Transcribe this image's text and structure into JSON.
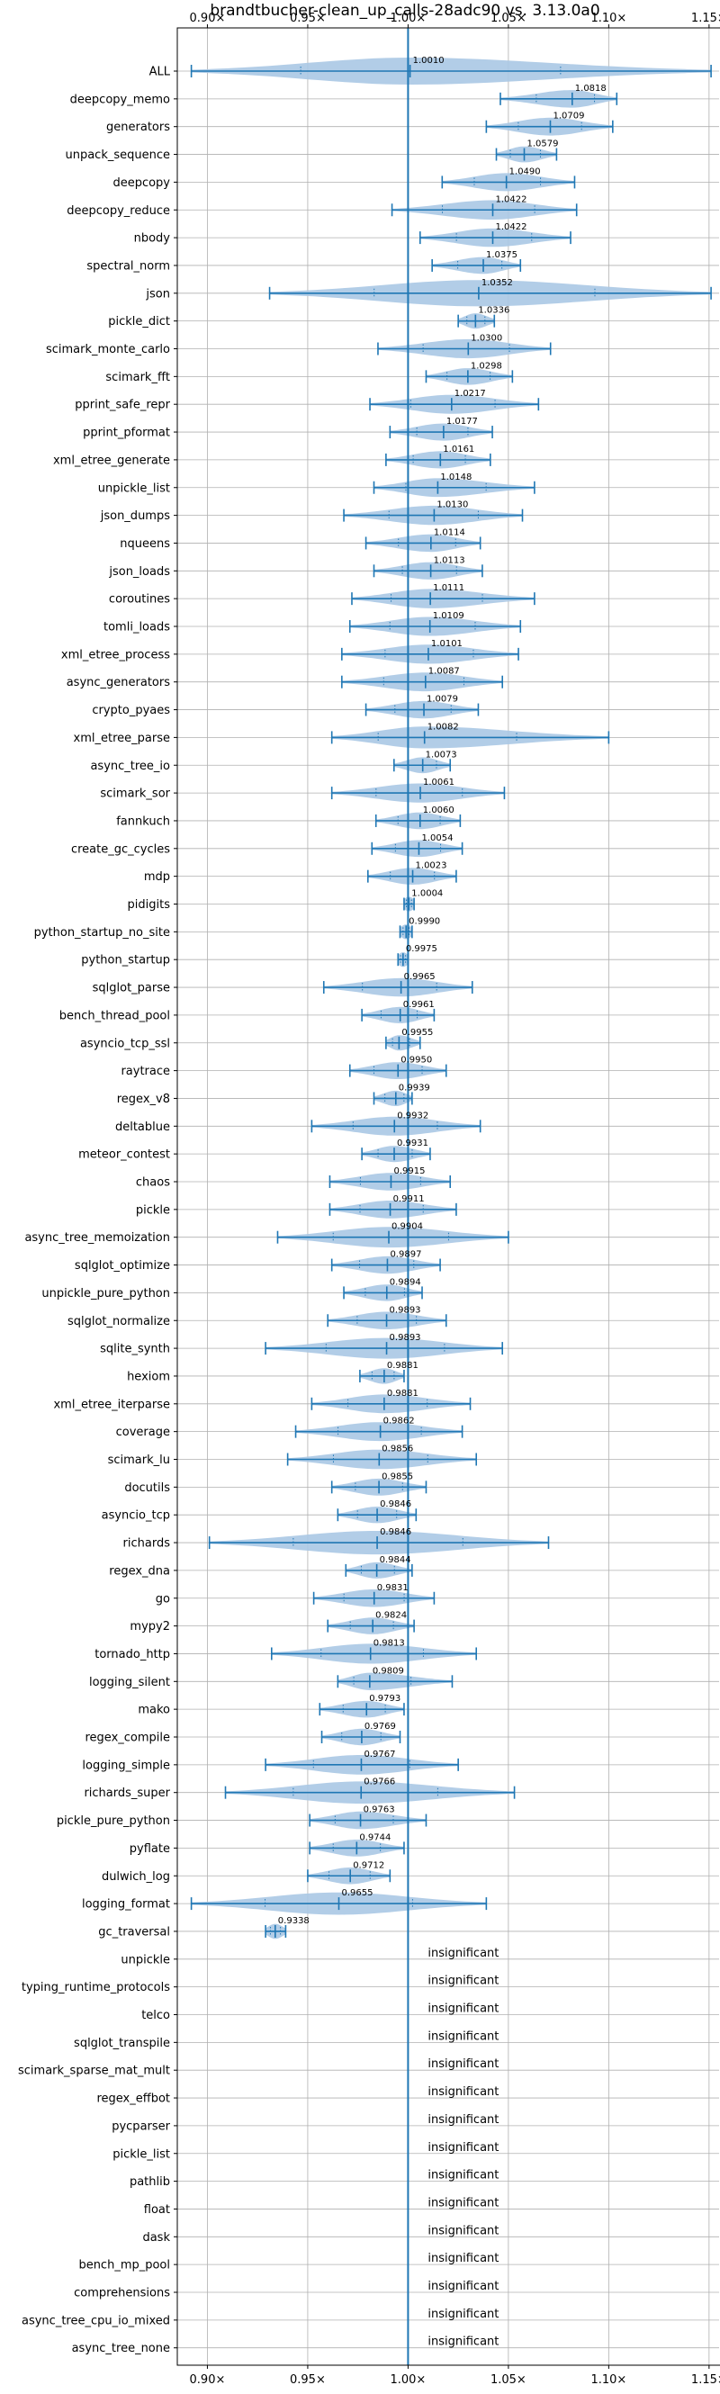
{
  "chart_data": {
    "type": "violin",
    "title": "brandtbucher-clean_up_calls-28adc90 vs. 3.13.0a0",
    "xlim": [
      0.885,
      1.155
    ],
    "x_ticks": [
      0.9,
      0.95,
      1.0,
      1.05,
      1.1,
      1.15
    ],
    "x_tick_labels": [
      "0.90×",
      "0.95×",
      "1.00×",
      "1.05×",
      "1.10×",
      "1.15×"
    ],
    "reference_line": 1.0,
    "grid": true,
    "colors": {
      "line": "#1f77b4",
      "violin": "#aac8e4",
      "grid": "#b0b0b0"
    },
    "series": [
      {
        "name": "ALL",
        "label": "1.0010",
        "median": 1.001,
        "min": 0.892,
        "max": 1.151
      },
      {
        "name": "deepcopy_memo",
        "label": "1.0818",
        "median": 1.0818,
        "min": 1.046,
        "max": 1.104
      },
      {
        "name": "generators",
        "label": "1.0709",
        "median": 1.0709,
        "min": 1.039,
        "max": 1.102
      },
      {
        "name": "unpack_sequence",
        "label": "1.0579",
        "median": 1.0579,
        "min": 1.044,
        "max": 1.074
      },
      {
        "name": "deepcopy",
        "label": "1.0490",
        "median": 1.049,
        "min": 1.017,
        "max": 1.083
      },
      {
        "name": "deepcopy_reduce",
        "label": "1.0422",
        "median": 1.0422,
        "min": 0.992,
        "max": 1.084
      },
      {
        "name": "nbody",
        "label": "1.0422",
        "median": 1.0422,
        "min": 1.006,
        "max": 1.081
      },
      {
        "name": "spectral_norm",
        "label": "1.0375",
        "median": 1.0375,
        "min": 1.012,
        "max": 1.056
      },
      {
        "name": "json",
        "label": "1.0352",
        "median": 1.0352,
        "min": 0.931,
        "max": 1.151
      },
      {
        "name": "pickle_dict",
        "label": "1.0336",
        "median": 1.0336,
        "min": 1.025,
        "max": 1.043
      },
      {
        "name": "scimark_monte_carlo",
        "label": "1.0300",
        "median": 1.03,
        "min": 0.985,
        "max": 1.071
      },
      {
        "name": "scimark_fft",
        "label": "1.0298",
        "median": 1.0298,
        "min": 1.009,
        "max": 1.052
      },
      {
        "name": "pprint_safe_repr",
        "label": "1.0217",
        "median": 1.0217,
        "min": 0.981,
        "max": 1.065
      },
      {
        "name": "pprint_pformat",
        "label": "1.0177",
        "median": 1.0177,
        "min": 0.991,
        "max": 1.042
      },
      {
        "name": "xml_etree_generate",
        "label": "1.0161",
        "median": 1.0161,
        "min": 0.989,
        "max": 1.041
      },
      {
        "name": "unpickle_list",
        "label": "1.0148",
        "median": 1.0148,
        "min": 0.983,
        "max": 1.063
      },
      {
        "name": "json_dumps",
        "label": "1.0130",
        "median": 1.013,
        "min": 0.968,
        "max": 1.057
      },
      {
        "name": "nqueens",
        "label": "1.0114",
        "median": 1.0114,
        "min": 0.979,
        "max": 1.036
      },
      {
        "name": "json_loads",
        "label": "1.0113",
        "median": 1.0113,
        "min": 0.983,
        "max": 1.037
      },
      {
        "name": "coroutines",
        "label": "1.0111",
        "median": 1.0111,
        "min": 0.972,
        "max": 1.063
      },
      {
        "name": "tomli_loads",
        "label": "1.0109",
        "median": 1.0109,
        "min": 0.971,
        "max": 1.056
      },
      {
        "name": "xml_etree_process",
        "label": "1.0101",
        "median": 1.0101,
        "min": 0.967,
        "max": 1.055
      },
      {
        "name": "async_generators",
        "label": "1.0087",
        "median": 1.0087,
        "min": 0.967,
        "max": 1.047
      },
      {
        "name": "crypto_pyaes",
        "label": "1.0079",
        "median": 1.0079,
        "min": 0.979,
        "max": 1.035
      },
      {
        "name": "xml_etree_parse",
        "label": "1.0082",
        "median": 1.0082,
        "min": 0.962,
        "max": 1.1
      },
      {
        "name": "async_tree_io",
        "label": "1.0073",
        "median": 1.0073,
        "min": 0.993,
        "max": 1.021
      },
      {
        "name": "scimark_sor",
        "label": "1.0061",
        "median": 1.0061,
        "min": 0.962,
        "max": 1.048
      },
      {
        "name": "fannkuch",
        "label": "1.0060",
        "median": 1.006,
        "min": 0.984,
        "max": 1.026
      },
      {
        "name": "create_gc_cycles",
        "label": "1.0054",
        "median": 1.0054,
        "min": 0.982,
        "max": 1.027
      },
      {
        "name": "mdp",
        "label": "1.0023",
        "median": 1.0023,
        "min": 0.98,
        "max": 1.024
      },
      {
        "name": "pidigits",
        "label": "1.0004",
        "median": 1.0004,
        "min": 0.998,
        "max": 1.003
      },
      {
        "name": "python_startup_no_site",
        "label": "0.9990",
        "median": 0.999,
        "min": 0.996,
        "max": 1.002
      },
      {
        "name": "python_startup",
        "label": "0.9975",
        "median": 0.9975,
        "min": 0.995,
        "max": 1.0
      },
      {
        "name": "sqlglot_parse",
        "label": "0.9965",
        "median": 0.9965,
        "min": 0.958,
        "max": 1.032
      },
      {
        "name": "bench_thread_pool",
        "label": "0.9961",
        "median": 0.9961,
        "min": 0.977,
        "max": 1.013
      },
      {
        "name": "asyncio_tcp_ssl",
        "label": "0.9955",
        "median": 0.9955,
        "min": 0.989,
        "max": 1.006
      },
      {
        "name": "raytrace",
        "label": "0.9950",
        "median": 0.995,
        "min": 0.971,
        "max": 1.019
      },
      {
        "name": "regex_v8",
        "label": "0.9939",
        "median": 0.9939,
        "min": 0.983,
        "max": 1.002
      },
      {
        "name": "deltablue",
        "label": "0.9932",
        "median": 0.9932,
        "min": 0.952,
        "max": 1.036
      },
      {
        "name": "meteor_contest",
        "label": "0.9931",
        "median": 0.9931,
        "min": 0.977,
        "max": 1.011
      },
      {
        "name": "chaos",
        "label": "0.9915",
        "median": 0.9915,
        "min": 0.961,
        "max": 1.021
      },
      {
        "name": "pickle",
        "label": "0.9911",
        "median": 0.9911,
        "min": 0.961,
        "max": 1.024
      },
      {
        "name": "async_tree_memoization",
        "label": "0.9904",
        "median": 0.9904,
        "min": 0.935,
        "max": 1.05
      },
      {
        "name": "sqlglot_optimize",
        "label": "0.9897",
        "median": 0.9897,
        "min": 0.962,
        "max": 1.016
      },
      {
        "name": "unpickle_pure_python",
        "label": "0.9894",
        "median": 0.9894,
        "min": 0.968,
        "max": 1.007
      },
      {
        "name": "sqlglot_normalize",
        "label": "0.9893",
        "median": 0.9893,
        "min": 0.96,
        "max": 1.019
      },
      {
        "name": "sqlite_synth",
        "label": "0.9893",
        "median": 0.9893,
        "min": 0.929,
        "max": 1.047
      },
      {
        "name": "hexiom",
        "label": "0.9881",
        "median": 0.9881,
        "min": 0.976,
        "max": 0.998
      },
      {
        "name": "xml_etree_iterparse",
        "label": "0.9881",
        "median": 0.9881,
        "min": 0.952,
        "max": 1.031
      },
      {
        "name": "coverage",
        "label": "0.9862",
        "median": 0.9862,
        "min": 0.944,
        "max": 1.027
      },
      {
        "name": "scimark_lu",
        "label": "0.9856",
        "median": 0.9856,
        "min": 0.94,
        "max": 1.034
      },
      {
        "name": "docutils",
        "label": "0.9855",
        "median": 0.9855,
        "min": 0.962,
        "max": 1.009
      },
      {
        "name": "asyncio_tcp",
        "label": "0.9846",
        "median": 0.9846,
        "min": 0.965,
        "max": 1.004
      },
      {
        "name": "richards",
        "label": "0.9846",
        "median": 0.9846,
        "min": 0.901,
        "max": 1.07
      },
      {
        "name": "regex_dna",
        "label": "0.9844",
        "median": 0.9844,
        "min": 0.969,
        "max": 1.002
      },
      {
        "name": "go",
        "label": "0.9831",
        "median": 0.9831,
        "min": 0.953,
        "max": 1.013
      },
      {
        "name": "mypy2",
        "label": "0.9824",
        "median": 0.9824,
        "min": 0.96,
        "max": 1.003
      },
      {
        "name": "tornado_http",
        "label": "0.9813",
        "median": 0.9813,
        "min": 0.932,
        "max": 1.034
      },
      {
        "name": "logging_silent",
        "label": "0.9809",
        "median": 0.9809,
        "min": 0.965,
        "max": 1.022
      },
      {
        "name": "mako",
        "label": "0.9793",
        "median": 0.9793,
        "min": 0.956,
        "max": 0.998
      },
      {
        "name": "regex_compile",
        "label": "0.9769",
        "median": 0.9769,
        "min": 0.957,
        "max": 0.996
      },
      {
        "name": "logging_simple",
        "label": "0.9767",
        "median": 0.9767,
        "min": 0.929,
        "max": 1.025
      },
      {
        "name": "richards_super",
        "label": "0.9766",
        "median": 0.9766,
        "min": 0.909,
        "max": 1.053
      },
      {
        "name": "pickle_pure_python",
        "label": "0.9763",
        "median": 0.9763,
        "min": 0.951,
        "max": 1.009
      },
      {
        "name": "pyflate",
        "label": "0.9744",
        "median": 0.9744,
        "min": 0.951,
        "max": 0.998
      },
      {
        "name": "dulwich_log",
        "label": "0.9712",
        "median": 0.9712,
        "min": 0.95,
        "max": 0.991
      },
      {
        "name": "logging_format",
        "label": "0.9655",
        "median": 0.9655,
        "min": 0.892,
        "max": 1.039
      },
      {
        "name": "gc_traversal",
        "label": "0.9338",
        "median": 0.9338,
        "min": 0.929,
        "max": 0.939
      },
      {
        "name": "unpickle",
        "label": "insignificant"
      },
      {
        "name": "typing_runtime_protocols",
        "label": "insignificant"
      },
      {
        "name": "telco",
        "label": "insignificant"
      },
      {
        "name": "sqlglot_transpile",
        "label": "insignificant"
      },
      {
        "name": "scimark_sparse_mat_mult",
        "label": "insignificant"
      },
      {
        "name": "regex_effbot",
        "label": "insignificant"
      },
      {
        "name": "pycparser",
        "label": "insignificant"
      },
      {
        "name": "pickle_list",
        "label": "insignificant"
      },
      {
        "name": "pathlib",
        "label": "insignificant"
      },
      {
        "name": "float",
        "label": "insignificant"
      },
      {
        "name": "dask",
        "label": "insignificant"
      },
      {
        "name": "bench_mp_pool",
        "label": "insignificant"
      },
      {
        "name": "comprehensions",
        "label": "insignificant"
      },
      {
        "name": "async_tree_cpu_io_mixed",
        "label": "insignificant"
      },
      {
        "name": "async_tree_none",
        "label": "insignificant"
      }
    ]
  }
}
